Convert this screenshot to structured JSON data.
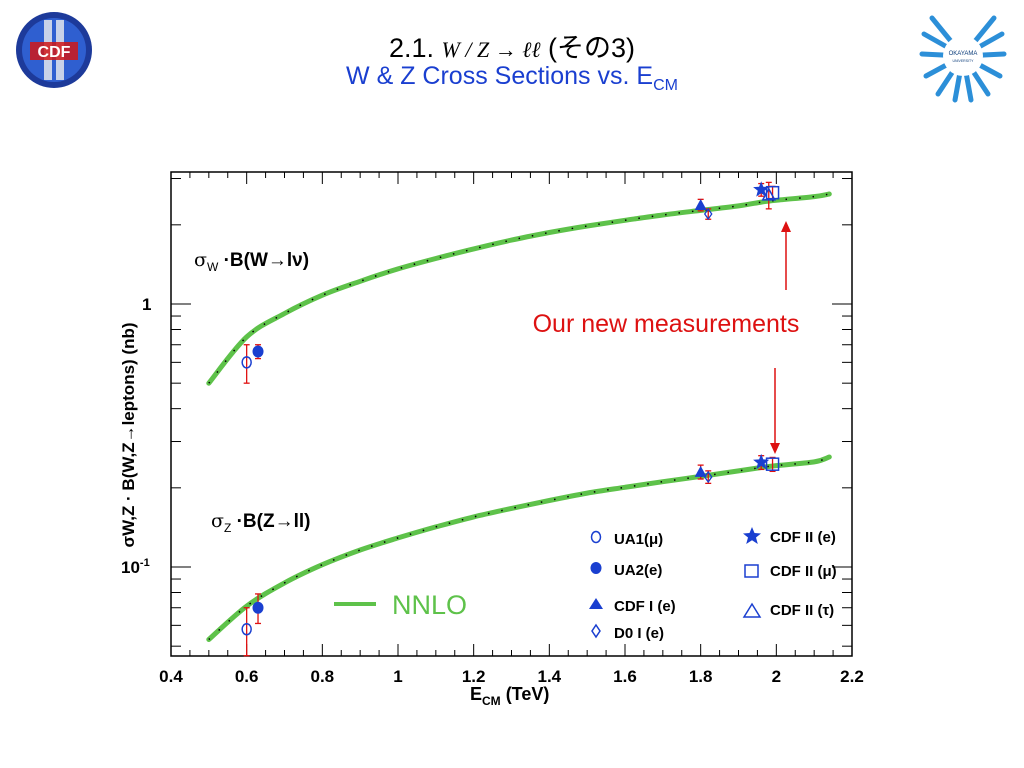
{
  "title": {
    "prefix": "2.1. ",
    "formula": "W / Z → ℓℓ",
    "suffix": " (その3)",
    "subtitle_main": "W & Z Cross Sections vs. E",
    "subtitle_sub": "CM"
  },
  "chart_data": {
    "type": "scatter",
    "xlabel_main": "E",
    "xlabel_sub": "CM",
    "xlabel_rest": " (TeV)",
    "ylabel": "σW,Z · B(W,Z→leptons) (nb)",
    "xlim": [
      0.4,
      2.2
    ],
    "ylim": [
      0.05,
      3.5
    ],
    "yscale": "log",
    "x_ticks": [
      "0.4",
      "0.6",
      "0.8",
      "1",
      "1.2",
      "1.4",
      "1.6",
      "1.8",
      "2",
      "2.2"
    ],
    "y_ticks": [
      {
        "value": 1,
        "label": "1"
      },
      {
        "value": 0.1,
        "label": "10",
        "exp": "-1"
      }
    ],
    "curve_labels": {
      "w": {
        "sym": "σ",
        "sub": "W",
        "text": " ·B(W→lν)"
      },
      "z": {
        "sym": "σ",
        "sub": "Z",
        "text": " ·B(Z→ll)"
      }
    },
    "annotation": "Our new measurements",
    "nnlo_label": "NNLO",
    "legend": [
      {
        "key": "ua1",
        "label": "UA1(μ)"
      },
      {
        "key": "ua2",
        "label": "UA2(e)"
      },
      {
        "key": "cdf1",
        "label": "CDF I (e)"
      },
      {
        "key": "d0",
        "label": "D0 I (e)"
      },
      {
        "key": "cdf2e",
        "label": "CDF II (e)"
      },
      {
        "key": "cdf2mu",
        "label": "CDF II (μ)"
      },
      {
        "key": "cdf2tau",
        "label": "CDF II (τ)"
      }
    ],
    "series": [
      {
        "name": "NNLO",
        "kind": "line",
        "x": [
          0.5,
          0.6,
          0.7,
          0.8,
          0.9,
          1.0,
          1.1,
          1.2,
          1.3,
          1.4,
          1.5,
          1.6,
          1.7,
          1.8,
          1.9,
          1.96,
          2.0,
          2.1,
          2.14
        ],
        "w": [
          0.5,
          0.75,
          0.92,
          1.08,
          1.22,
          1.36,
          1.49,
          1.62,
          1.75,
          1.87,
          1.98,
          2.08,
          2.18,
          2.27,
          2.36,
          2.44,
          2.48,
          2.56,
          2.62
        ],
        "z": [
          0.053,
          0.071,
          0.087,
          0.102,
          0.116,
          0.129,
          0.142,
          0.155,
          0.167,
          0.179,
          0.191,
          0.201,
          0.211,
          0.221,
          0.232,
          0.239,
          0.243,
          0.251,
          0.262
        ]
      },
      {
        "name": "UA1(μ)",
        "key": "ua1",
        "x": [
          0.6,
          0.6
        ],
        "y": [
          0.6,
          0.058
        ],
        "err": [
          0.1,
          0.012
        ]
      },
      {
        "name": "UA2(e)",
        "key": "ua2",
        "x": [
          0.63,
          0.63
        ],
        "y": [
          0.66,
          0.07
        ],
        "err": [
          0.04,
          0.009
        ]
      },
      {
        "name": "CDF I (e)",
        "key": "cdf1",
        "x": [
          1.8,
          1.8
        ],
        "y": [
          2.38,
          0.23
        ],
        "err": [
          0.12,
          0.014
        ]
      },
      {
        "name": "D0 I (e)",
        "key": "d0",
        "x": [
          1.82,
          1.82
        ],
        "y": [
          2.2,
          0.22
        ],
        "err": [
          0.1,
          0.012
        ]
      },
      {
        "name": "CDF II (e)",
        "key": "cdf2e",
        "x": [
          1.96,
          1.96
        ],
        "y": [
          2.72,
          0.25
        ],
        "err": [
          0.15,
          0.015
        ]
      },
      {
        "name": "CDF II (μ)",
        "key": "cdf2mu",
        "x": [
          1.99,
          1.99
        ],
        "y": [
          2.65,
          0.246
        ],
        "err": [
          0.15,
          0.015
        ]
      },
      {
        "name": "CDF II (τ)",
        "key": "cdf2tau",
        "x": [
          1.98
        ],
        "y": [
          2.6
        ],
        "err": [
          0.3
        ]
      }
    ]
  },
  "colors": {
    "accent": "#1a3fd0",
    "curve": "#5ec24a",
    "error": "#e01010",
    "marker": "#1a3fd0",
    "annotation": "#dd1111"
  }
}
